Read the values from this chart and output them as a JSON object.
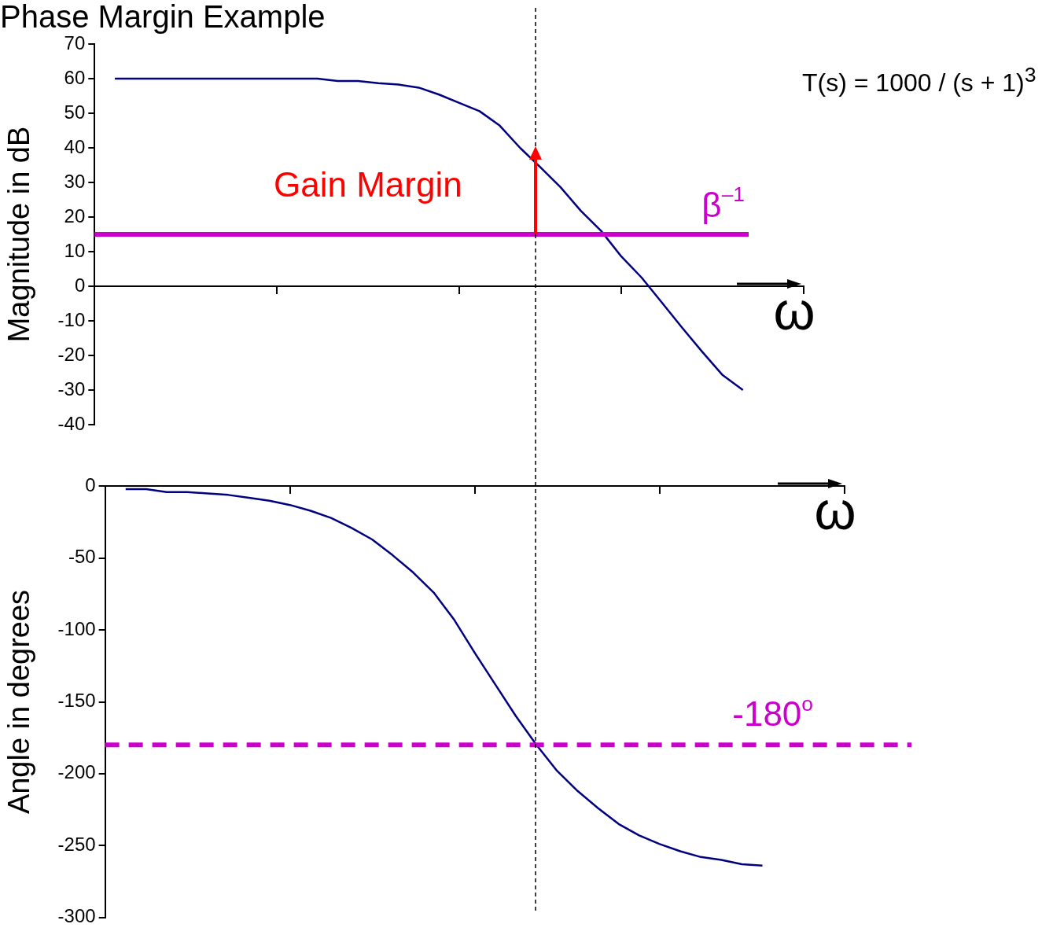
{
  "chart_data": [
    {
      "type": "line",
      "title": "Phase Margin Example",
      "xlabel": "ω",
      "ylabel": "Magnitude in dB",
      "categories": [
        null,
        null,
        null,
        null,
        null,
        null,
        null,
        null,
        null,
        null,
        null,
        null,
        null,
        null,
        null,
        null,
        null,
        null,
        null,
        null,
        null,
        null,
        null,
        null,
        null,
        null,
        null,
        null,
        null,
        null,
        null,
        null,
        null,
        null,
        null,
        null
      ],
      "series": [
        {
          "color": "#000080",
          "values": [
            null,
            60,
            60,
            60,
            60,
            60,
            60,
            60,
            60,
            60,
            60,
            60,
            59.3,
            59.3,
            58.7,
            58.3,
            57.4,
            55.4,
            53,
            50.6,
            46.4,
            40,
            34.4,
            28.6,
            21.8,
            16,
            8.6,
            2.5,
            -4.7,
            -12,
            -19,
            -25.7,
            -30,
            null,
            null,
            null
          ]
        }
      ],
      "ylim": [
        -40,
        70
      ],
      "yticks": [
        -40,
        -30,
        -20,
        -10,
        0,
        10,
        20,
        30,
        40,
        50,
        60,
        70
      ],
      "tick_labels": "y",
      "legend": false,
      "marker": "none",
      "line_style": "solid",
      "ref_lines": [
        {
          "axis": "y",
          "value": 15,
          "label": "β$^{–1}$",
          "color": "#cc00cc",
          "line_style": "solid"
        }
      ],
      "annotations": [
        "Gain Margin",
        "T(s) = 1000 / (s + 1)$^{3}$"
      ]
    },
    {
      "type": "line",
      "xlabel": "ω",
      "ylabel": "Angle in degrees",
      "categories": [
        null,
        null,
        null,
        null,
        null,
        null,
        null,
        null,
        null,
        null,
        null,
        null,
        null,
        null,
        null,
        null,
        null,
        null,
        null,
        null,
        null,
        null,
        null,
        null,
        null,
        null,
        null,
        null,
        null,
        null,
        null,
        null,
        null,
        null,
        null,
        null,
        null
      ],
      "series": [
        {
          "color": "#000080",
          "values": [
            null,
            -2,
            -2,
            -4,
            -4,
            -5,
            -6,
            -8,
            -10,
            -13,
            -17,
            -22,
            -29,
            -37,
            -48,
            -60,
            -74,
            -93,
            -116,
            -138,
            -160,
            -180,
            -198,
            -212,
            -224,
            -235,
            -243,
            -249,
            -254,
            -258,
            -260,
            -263,
            -264,
            null,
            null,
            null,
            null
          ]
        }
      ],
      "ylim": [
        -300,
        0
      ],
      "yticks": [
        -300,
        -250,
        -200,
        -150,
        -100,
        -50,
        0
      ],
      "tick_labels": "y",
      "legend": false,
      "marker": "none",
      "line_style": "solid",
      "ref_lines": [
        {
          "axis": "y",
          "value": -180,
          "label": "-180$^{o}$",
          "color": "#cc00cc",
          "line_style": "dashed"
        }
      ]
    }
  ]
}
